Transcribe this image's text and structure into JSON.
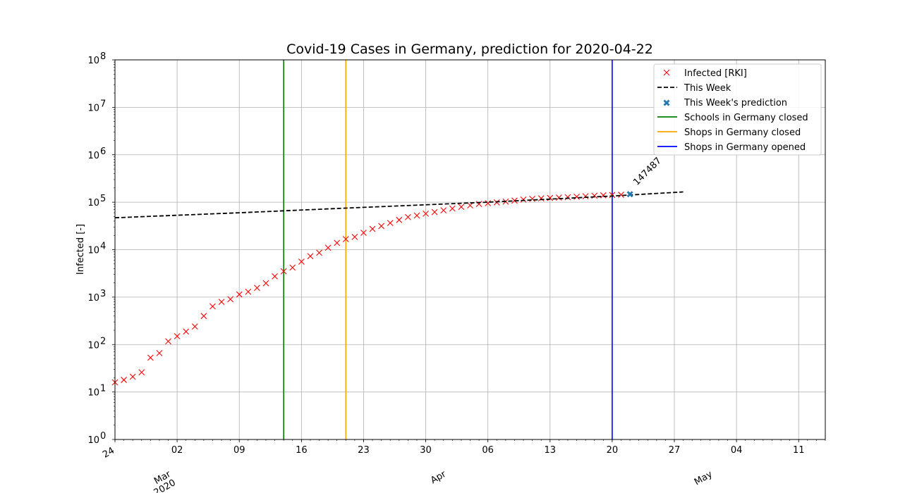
{
  "chart_data": {
    "type": "scatter",
    "title": "Covid-19 Cases in Germany, prediction for 2020-04-22",
    "xlabel": "",
    "ylabel": "Infected [-]",
    "yscale": "log",
    "ylim": [
      1,
      100000000
    ],
    "xlim": [
      "2020-02-24",
      "2020-05-14"
    ],
    "grid": true,
    "legend_position": "top-right",
    "y_ticks": [
      {
        "base": "10",
        "exp": "0"
      },
      {
        "base": "10",
        "exp": "1"
      },
      {
        "base": "10",
        "exp": "2"
      },
      {
        "base": "10",
        "exp": "3"
      },
      {
        "base": "10",
        "exp": "4"
      },
      {
        "base": "10",
        "exp": "5"
      },
      {
        "base": "10",
        "exp": "6"
      },
      {
        "base": "10",
        "exp": "7"
      },
      {
        "base": "10",
        "exp": "8"
      }
    ],
    "x_ticks": [
      {
        "date": "2020-02-24",
        "label": "24",
        "rotated": true
      },
      {
        "date": "2020-03-02",
        "label": "02"
      },
      {
        "date": "2020-03-09",
        "label": "09"
      },
      {
        "date": "2020-03-16",
        "label": "16"
      },
      {
        "date": "2020-03-23",
        "label": "23"
      },
      {
        "date": "2020-03-30",
        "label": "30"
      },
      {
        "date": "2020-04-06",
        "label": "06"
      },
      {
        "date": "2020-04-13",
        "label": "13"
      },
      {
        "date": "2020-04-20",
        "label": "20"
      },
      {
        "date": "2020-04-27",
        "label": "27"
      },
      {
        "date": "2020-05-04",
        "label": "04"
      },
      {
        "date": "2020-05-11",
        "label": "11"
      }
    ],
    "x_major_labels": [
      {
        "date": "2020-03-01",
        "lines": [
          "Mar",
          "2020"
        ]
      },
      {
        "date": "2020-04-01",
        "lines": [
          "Apr"
        ]
      },
      {
        "date": "2020-05-01",
        "lines": [
          "May"
        ]
      }
    ],
    "series": [
      {
        "name": "Infected [RKI]",
        "kind": "markers",
        "marker": "x",
        "color": "#ff0000",
        "points": [
          [
            "2020-02-24",
            16
          ],
          [
            "2020-02-25",
            18
          ],
          [
            "2020-02-26",
            21
          ],
          [
            "2020-02-27",
            26
          ],
          [
            "2020-02-28",
            53
          ],
          [
            "2020-02-29",
            66
          ],
          [
            "2020-03-01",
            117
          ],
          [
            "2020-03-02",
            150
          ],
          [
            "2020-03-03",
            188
          ],
          [
            "2020-03-04",
            240
          ],
          [
            "2020-03-05",
            400
          ],
          [
            "2020-03-06",
            639
          ],
          [
            "2020-03-07",
            795
          ],
          [
            "2020-03-08",
            902
          ],
          [
            "2020-03-09",
            1139
          ],
          [
            "2020-03-10",
            1296
          ],
          [
            "2020-03-11",
            1567
          ],
          [
            "2020-03-12",
            1966
          ],
          [
            "2020-03-13",
            2745
          ],
          [
            "2020-03-14",
            3500
          ],
          [
            "2020-03-15",
            4200
          ],
          [
            "2020-03-16",
            5600
          ],
          [
            "2020-03-17",
            7300
          ],
          [
            "2020-03-18",
            8600
          ],
          [
            "2020-03-19",
            10999
          ],
          [
            "2020-03-20",
            13900
          ],
          [
            "2020-03-21",
            16700
          ],
          [
            "2020-03-22",
            18600
          ],
          [
            "2020-03-23",
            22700
          ],
          [
            "2020-03-24",
            27400
          ],
          [
            "2020-03-25",
            31500
          ],
          [
            "2020-03-26",
            36500
          ],
          [
            "2020-03-27",
            42300
          ],
          [
            "2020-03-28",
            48600
          ],
          [
            "2020-03-29",
            52500
          ],
          [
            "2020-03-30",
            57300
          ],
          [
            "2020-03-31",
            61900
          ],
          [
            "2020-04-01",
            67400
          ],
          [
            "2020-04-02",
            73500
          ],
          [
            "2020-04-03",
            79700
          ],
          [
            "2020-04-04",
            85800
          ],
          [
            "2020-04-05",
            91700
          ],
          [
            "2020-04-06",
            95400
          ],
          [
            "2020-04-07",
            99200
          ],
          [
            "2020-04-08",
            103200
          ],
          [
            "2020-04-09",
            108200
          ],
          [
            "2020-04-10",
            113500
          ],
          [
            "2020-04-11",
            117700
          ],
          [
            "2020-04-12",
            120500
          ],
          [
            "2020-04-13",
            123000
          ],
          [
            "2020-04-14",
            125100
          ],
          [
            "2020-04-15",
            127600
          ],
          [
            "2020-04-16",
            130500
          ],
          [
            "2020-04-17",
            133800
          ],
          [
            "2020-04-18",
            137400
          ],
          [
            "2020-04-19",
            139900
          ],
          [
            "2020-04-20",
            141700
          ],
          [
            "2020-04-21",
            143500
          ]
        ]
      },
      {
        "name": "This Week",
        "kind": "dashed-line",
        "color": "#000000",
        "points": [
          [
            "2020-02-24",
            47000
          ],
          [
            "2020-03-09",
            60000
          ],
          [
            "2020-03-23",
            78000
          ],
          [
            "2020-04-06",
            100000
          ],
          [
            "2020-04-20",
            135000
          ],
          [
            "2020-04-28",
            165000
          ]
        ]
      },
      {
        "name": "This Week's prediction",
        "kind": "markers",
        "marker": "X",
        "color": "#1f77b4",
        "points": [
          [
            "2020-04-22",
            147487
          ]
        ],
        "annotation": "147487"
      }
    ],
    "vertical_lines": [
      {
        "name": "Schools in Germany closed",
        "date": "2020-03-14",
        "color": "#008000"
      },
      {
        "name": "Shops in Germany closed",
        "date": "2020-03-21",
        "color": "#ffa500"
      },
      {
        "name": "Shops in Germany opened",
        "date": "2020-04-20",
        "color": "#0000ff"
      }
    ]
  }
}
